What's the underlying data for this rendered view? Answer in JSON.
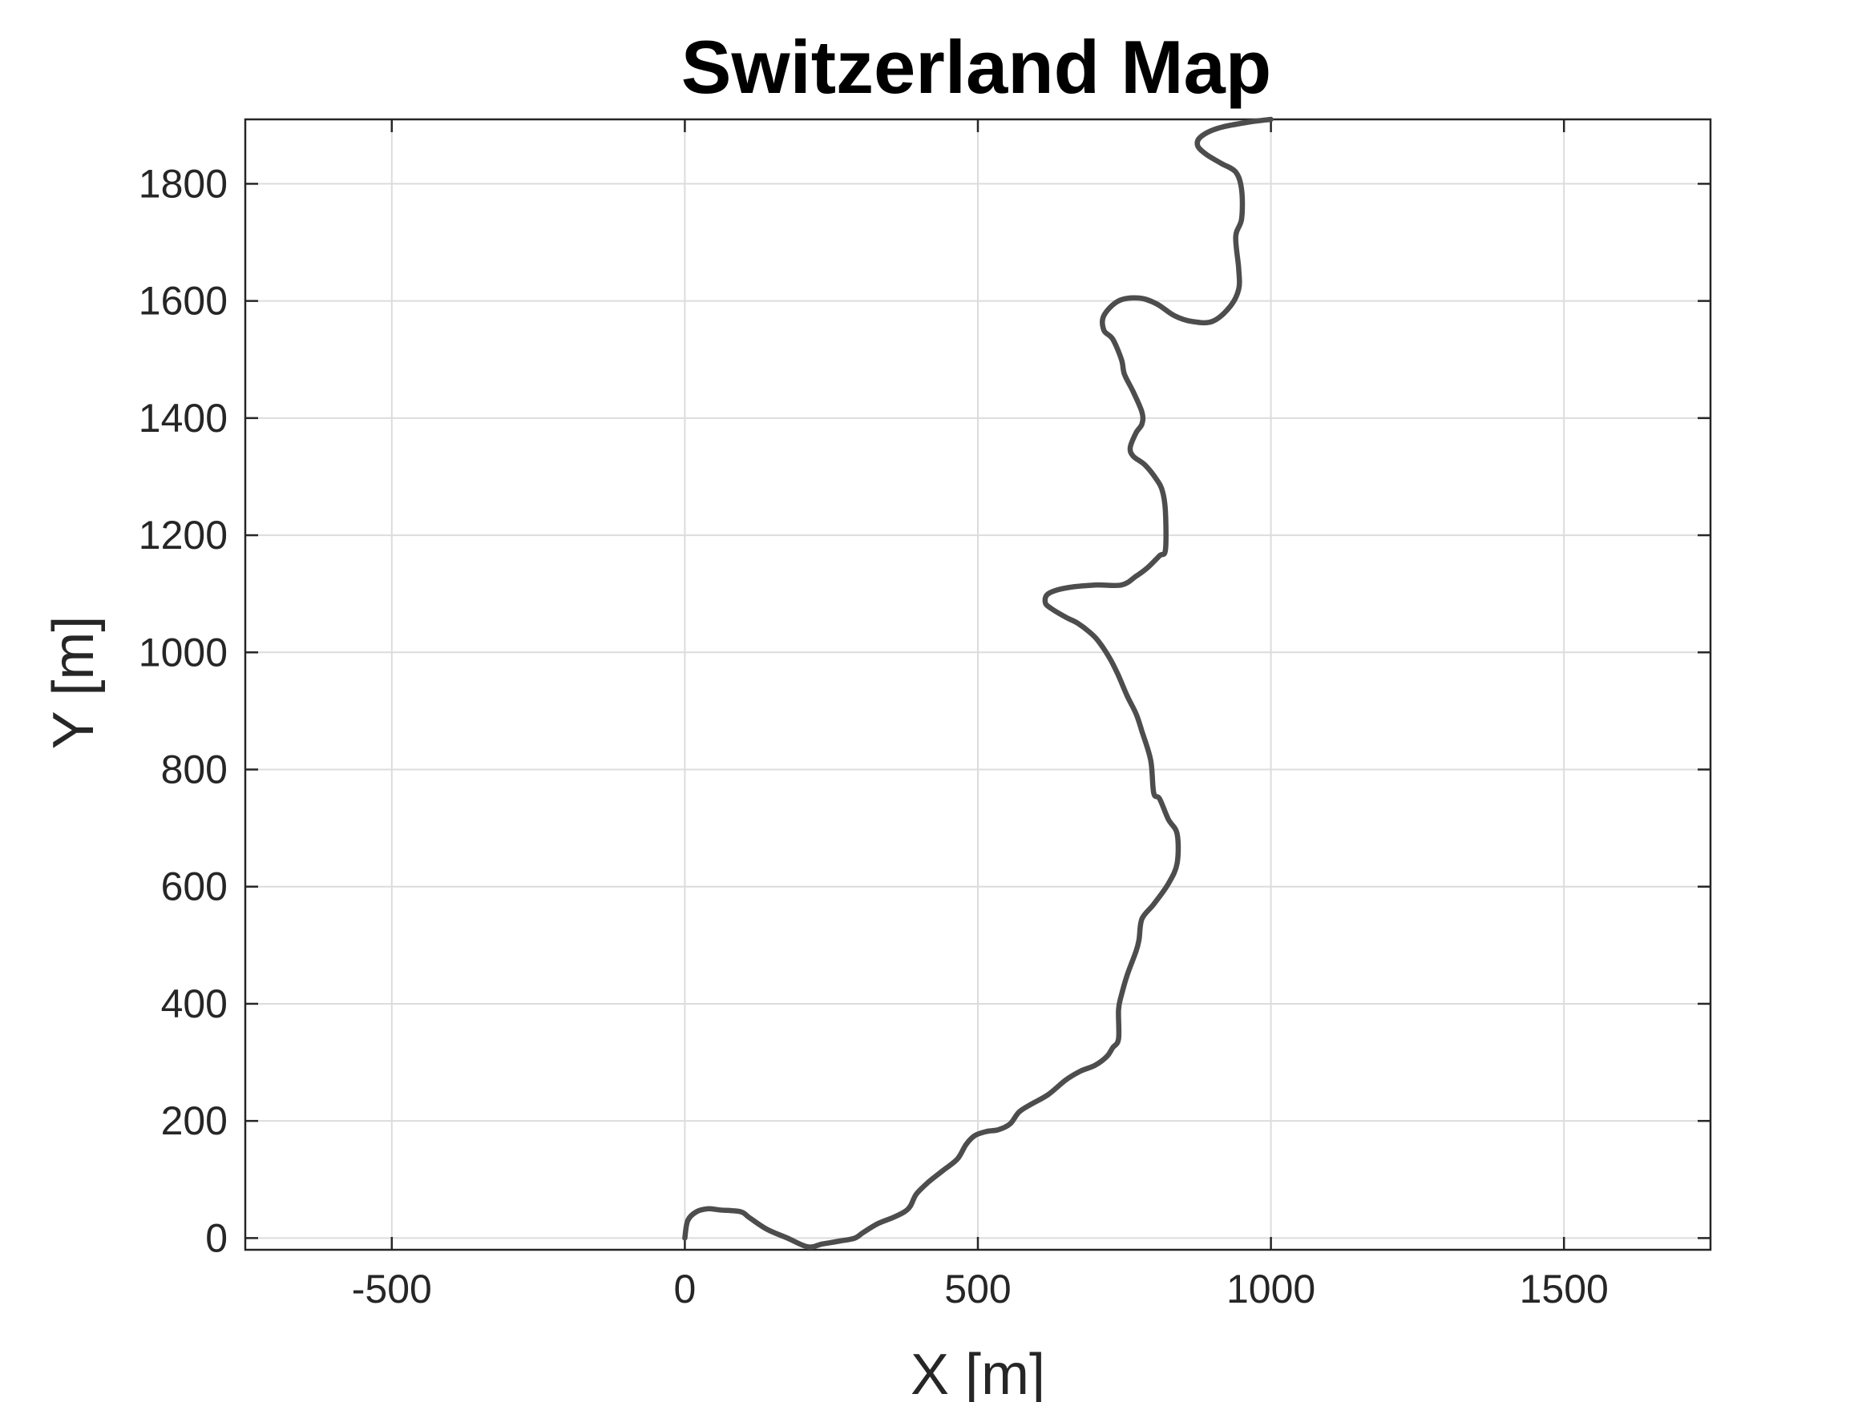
{
  "chart_data": {
    "type": "line",
    "title": "Switzerland Map",
    "xlabel": "X [m]",
    "ylabel": "Y [m]",
    "xlim": [
      -750,
      1750
    ],
    "ylim": [
      -20,
      1910
    ],
    "xticks": [
      -500,
      0,
      500,
      1000,
      1500
    ],
    "yticks": [
      0,
      200,
      400,
      600,
      800,
      1000,
      1200,
      1400,
      1600,
      1800
    ],
    "grid": true,
    "line_color": "#4d4d4d",
    "series": [
      {
        "x": [
          0,
          5,
          20,
          40,
          60,
          95,
          110,
          140,
          175,
          210,
          235,
          265,
          290,
          305,
          330,
          355,
          375,
          385,
          395,
          415,
          440,
          465,
          480,
          495,
          515,
          535,
          555,
          570,
          590,
          620,
          650,
          675,
          700,
          720,
          730,
          740,
          740,
          745,
          755,
          770,
          775,
          780,
          800,
          825,
          840,
          840,
          825,
          810,
          800,
          795,
          780,
          770,
          755,
          740,
          725,
          705,
          690,
          670,
          650,
          625,
          615,
          620,
          650,
          700,
          745,
          770,
          790,
          810,
          820,
          820,
          815,
          805,
          785,
          765,
          760,
          770,
          780,
          780,
          765,
          750,
          745,
          730,
          715,
          715,
          740,
          775,
          805,
          835,
          865,
          900,
          930,
          945,
          945,
          940,
          950,
          950,
          940,
          915,
          890,
          875,
          880,
          910,
          960,
          1000
        ],
        "y": [
          0,
          30,
          45,
          50,
          48,
          45,
          35,
          15,
          0,
          -15,
          -10,
          -5,
          0,
          10,
          25,
          35,
          45,
          55,
          75,
          95,
          115,
          135,
          160,
          175,
          182,
          185,
          195,
          215,
          228,
          245,
          270,
          285,
          295,
          310,
          325,
          340,
          390,
          415,
          450,
          490,
          510,
          545,
          570,
          605,
          640,
          690,
          715,
          750,
          760,
          815,
          865,
          895,
          925,
          960,
          990,
          1020,
          1035,
          1050,
          1060,
          1075,
          1085,
          1100,
          1110,
          1115,
          1115,
          1130,
          1145,
          1165,
          1175,
          1240,
          1275,
          1295,
          1320,
          1335,
          1350,
          1375,
          1390,
          1410,
          1445,
          1475,
          1500,
          1535,
          1550,
          1575,
          1600,
          1605,
          1595,
          1575,
          1565,
          1565,
          1590,
          1620,
          1655,
          1710,
          1740,
          1790,
          1820,
          1835,
          1850,
          1865,
          1880,
          1895,
          1905,
          1910
        ]
      }
    ]
  }
}
